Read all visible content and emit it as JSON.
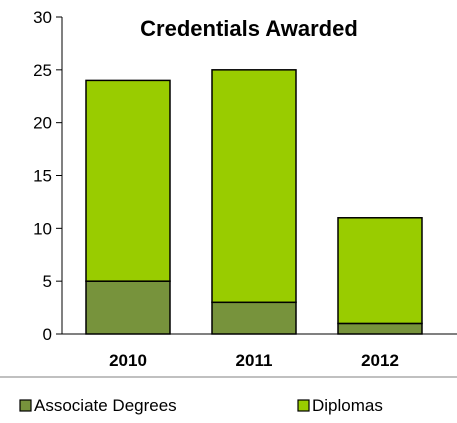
{
  "chart_data": {
    "type": "bar",
    "stacked": true,
    "title": "Credentials Awarded",
    "xlabel": "",
    "ylabel": "",
    "categories": [
      "2010",
      "2011",
      "2012"
    ],
    "series": [
      {
        "name": "Associate Degrees",
        "values": [
          5,
          3,
          1
        ],
        "color": "#77933c"
      },
      {
        "name": "Diplomas",
        "values": [
          19,
          22,
          10
        ],
        "color": "#99cc00"
      }
    ],
    "ylim": [
      0,
      30
    ],
    "yticks": [
      0,
      5,
      10,
      15,
      20,
      25,
      30
    ],
    "grid": false,
    "legend_position": "bottom"
  }
}
